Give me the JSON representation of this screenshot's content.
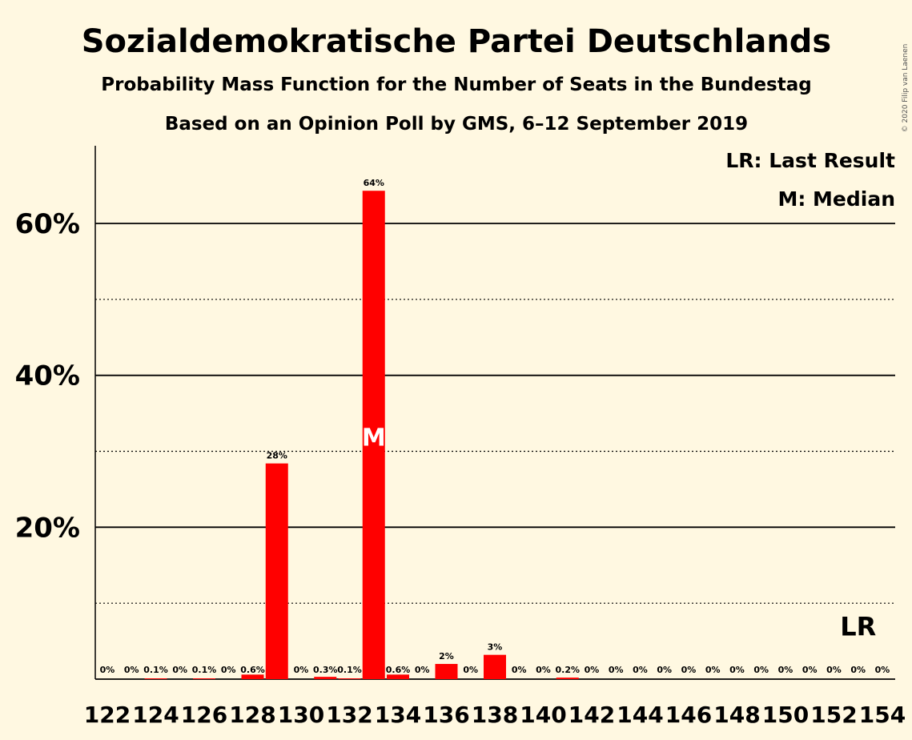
{
  "chart_data": {
    "type": "bar",
    "title": "Sozialdemokratische Partei Deutschlands",
    "subtitle": "Probability Mass Function for the Number of Seats in the Bundestag",
    "subtitle2": "Based on an Opinion Poll by GMS, 6–12 September 2019",
    "copyright": "© 2020 Filip van Laenen",
    "legend": {
      "lr": "LR: Last Result",
      "median": "M: Median",
      "placement": "top-right"
    },
    "ylim": [
      0,
      70
    ],
    "yticks": [
      {
        "value": 20,
        "label": "20%"
      },
      {
        "value": 40,
        "label": "40%"
      },
      {
        "value": 60,
        "label": "60%"
      }
    ],
    "minor_gridlines": [
      10,
      30,
      50
    ],
    "x_tick_labels": [
      "122",
      "124",
      "126",
      "128",
      "130",
      "132",
      "134",
      "136",
      "138",
      "140",
      "142",
      "144",
      "146",
      "148",
      "150",
      "152",
      "154"
    ],
    "categories": [
      122,
      123,
      124,
      125,
      126,
      127,
      128,
      129,
      130,
      131,
      132,
      133,
      134,
      135,
      136,
      137,
      138,
      139,
      140,
      141,
      142,
      143,
      144,
      145,
      146,
      147,
      148,
      149,
      150,
      151,
      152,
      153,
      154
    ],
    "values": [
      0,
      0,
      0.1,
      0,
      0.1,
      0,
      0.6,
      28.4,
      0,
      0.3,
      0.1,
      64.3,
      0.6,
      0,
      2.0,
      0,
      3.2,
      0,
      0,
      0.2,
      0,
      0,
      0,
      0,
      0,
      0,
      0,
      0,
      0,
      0,
      0,
      0,
      0
    ],
    "labels": [
      "0%",
      "0%",
      "0.1%",
      "0%",
      "0.1%",
      "0%",
      "0.6%",
      "28%",
      "0%",
      "0.3%",
      "0.1%",
      "64%",
      "0.6%",
      "0%",
      "2%",
      "0%",
      "3%",
      "0%",
      "0%",
      "0.2%",
      "0%",
      "0%",
      "0%",
      "0%",
      "0%",
      "0%",
      "0%",
      "0%",
      "0%",
      "0%",
      "0%",
      "0%",
      "0%"
    ],
    "median_seat": 133,
    "median_marker": "M",
    "last_result_seat": 153,
    "last_result_marker": "LR",
    "bar_color": "#FF0000",
    "grid": true
  }
}
